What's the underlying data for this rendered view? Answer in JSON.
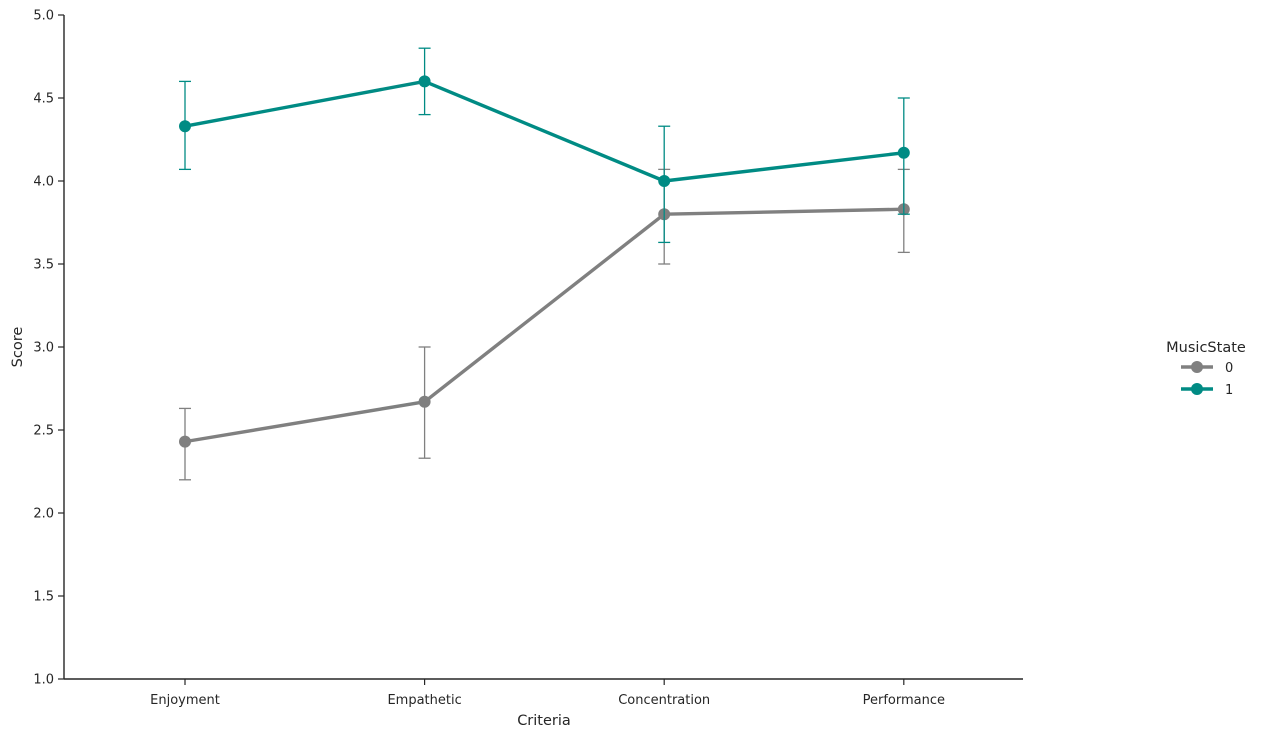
{
  "chart_data": {
    "type": "line",
    "categories": [
      "Enjoyment",
      "Empathetic",
      "Concentration",
      "Performance"
    ],
    "xlabel": "Criteria",
    "ylabel": "Score",
    "ylim": [
      1.0,
      5.0
    ],
    "yticks": [
      "1.0",
      "1.5",
      "2.0",
      "2.5",
      "3.0",
      "3.5",
      "4.0",
      "4.5",
      "5.0"
    ],
    "grid": false,
    "legend": {
      "title": "MusicState",
      "placement": "right",
      "entries": [
        "0",
        "1"
      ]
    },
    "series": [
      {
        "name": "0",
        "color": "#808080",
        "values": [
          2.43,
          2.67,
          3.8,
          3.83
        ],
        "err_low": [
          2.2,
          2.33,
          3.5,
          3.57
        ],
        "err_high": [
          2.63,
          3.0,
          4.07,
          4.07
        ]
      },
      {
        "name": "1",
        "color": "#008b84",
        "values": [
          4.33,
          4.6,
          4.0,
          4.17
        ],
        "err_low": [
          4.07,
          4.4,
          3.63,
          3.8
        ],
        "err_high": [
          4.6,
          4.8,
          4.33,
          4.5
        ]
      }
    ]
  }
}
